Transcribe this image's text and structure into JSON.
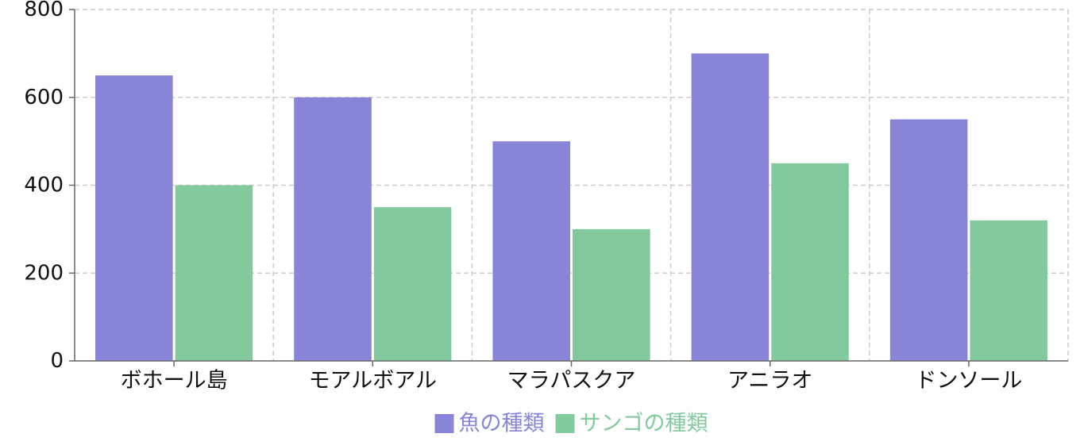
{
  "chart_data": {
    "type": "bar",
    "categories": [
      "ボホール島",
      "モアルボアル",
      "マラパスクア",
      "アニラオ",
      "ドンソール"
    ],
    "series": [
      {
        "name": "魚の種類",
        "values": [
          650,
          600,
          500,
          700,
          550
        ],
        "color": "#8884d8"
      },
      {
        "name": "サンゴの種類",
        "values": [
          400,
          350,
          300,
          450,
          320
        ],
        "color": "#82ca9d"
      }
    ],
    "ylim": [
      0,
      800
    ],
    "yticks": [
      0,
      200,
      400,
      600,
      800
    ],
    "grid": true,
    "legend_position": "bottom-center",
    "title": "",
    "xlabel": "",
    "ylabel": ""
  }
}
